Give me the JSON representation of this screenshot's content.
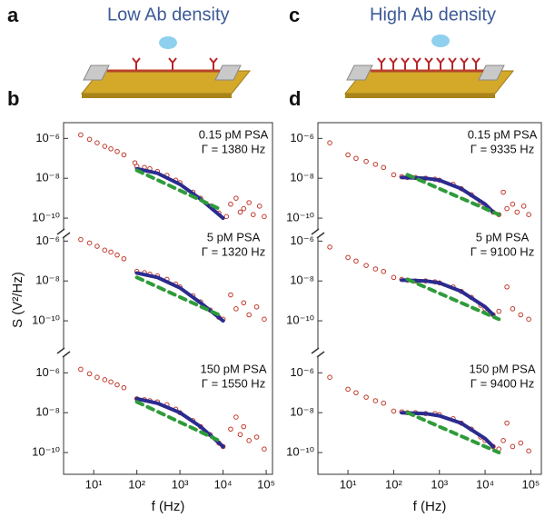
{
  "figure": {
    "panel_labels": [
      "a",
      "b",
      "c",
      "d"
    ],
    "titles": [
      "Low Ab density",
      "High Ab density"
    ],
    "y_label": "S (V²/Hz)",
    "x_labels": [
      "f (Hz)",
      "f (Hz)"
    ]
  },
  "chart_data": [
    {
      "type": "scatter",
      "log_x": true,
      "log_y": true,
      "xlim": [
        2,
        140000
      ],
      "ylim": [
        1e-11,
        5e-06
      ],
      "yticks": [
        {
          "value": 1e-06,
          "label": "10⁻⁶"
        },
        {
          "value": 1e-08,
          "label": "10⁻⁸"
        },
        {
          "value": 1e-10,
          "label": "10⁻¹⁰"
        }
      ],
      "annotations": [
        "0.15 pM PSA",
        "Γ = 1380 Hz"
      ],
      "series": [
        {
          "style": "markers",
          "color": "#c0392b",
          "x": [
            5,
            8,
            12,
            18,
            25,
            35,
            50,
            90,
            100,
            150,
            200,
            300,
            500,
            800,
            1000,
            2000,
            3000,
            5000,
            8000,
            12000,
            15000,
            20000,
            25000,
            30000,
            40000,
            50000,
            70000,
            90000
          ],
          "values": [
            1.5e-06,
            9e-07,
            6e-07,
            4e-07,
            3e-07,
            2.2e-07,
            1.5e-07,
            6e-08,
            4e-08,
            3.5e-08,
            3e-08,
            2.2e-08,
            1.4e-08,
            8e-09,
            6e-09,
            2e-09,
            1e-09,
            4e-10,
            1.8e-10,
            1.2e-10,
            5e-10,
            1e-09,
            2e-10,
            3e-10,
            6e-10,
            1.5e-10,
            4e-10,
            1.2e-10
          ]
        },
        {
          "style": "line",
          "color": "#2b2b8f",
          "x": [
            100,
            300,
            1000,
            3000,
            10000
          ],
          "values": [
            3e-08,
            1.8e-08,
            5e-09,
            9e-10,
            1e-10
          ]
        },
        {
          "style": "dashed",
          "color": "#2e9b3a",
          "x": [
            100,
            8000
          ],
          "values": [
            2.5e-08,
            3e-10
          ]
        }
      ]
    },
    {
      "type": "scatter",
      "log_x": true,
      "log_y": true,
      "xlim": [
        2,
        140000
      ],
      "ylim": [
        1e-11,
        5e-06
      ],
      "yticks": [
        {
          "value": 1e-06,
          "label": "10⁻⁶"
        },
        {
          "value": 1e-08,
          "label": "10⁻⁸"
        },
        {
          "value": 1e-10,
          "label": "10⁻¹⁰"
        }
      ],
      "annotations": [
        "5 pM PSA",
        "Γ = 1320 Hz"
      ],
      "series": [
        {
          "style": "markers",
          "color": "#c0392b",
          "x": [
            5,
            8,
            12,
            18,
            25,
            35,
            50,
            100,
            150,
            200,
            300,
            500,
            800,
            1000,
            2000,
            3000,
            5000,
            8000,
            10000,
            15000,
            20000,
            30000,
            40000,
            60000,
            90000
          ],
          "values": [
            1.2e-06,
            8e-07,
            5.5e-07,
            3.5e-07,
            2.8e-07,
            2e-07,
            1.3e-07,
            3e-08,
            2.6e-08,
            2.2e-08,
            1.8e-08,
            1.2e-08,
            7e-09,
            5e-09,
            1.8e-09,
            9e-10,
            3.5e-10,
            1.5e-10,
            1.2e-10,
            2e-09,
            4e-10,
            8e-10,
            2e-10,
            5e-10,
            1.2e-10
          ]
        },
        {
          "style": "line",
          "color": "#2b2b8f",
          "x": [
            100,
            300,
            1000,
            3000,
            10000
          ],
          "values": [
            2.5e-08,
            1.5e-08,
            4.5e-09,
            8e-10,
            1e-10
          ]
        },
        {
          "style": "dashed",
          "color": "#2e9b3a",
          "x": [
            100,
            8000
          ],
          "values": [
            1.5e-08,
            2e-10
          ]
        }
      ]
    },
    {
      "type": "scatter",
      "log_x": true,
      "log_y": true,
      "xlim": [
        2,
        140000
      ],
      "ylim": [
        1e-11,
        5e-06
      ],
      "xticks": [
        {
          "value": 10,
          "label": "10¹"
        },
        {
          "value": 100,
          "label": "10²"
        },
        {
          "value": 1000,
          "label": "10³"
        },
        {
          "value": 10000,
          "label": "10⁴"
        },
        {
          "value": 100000,
          "label": "10⁵"
        }
      ],
      "yticks": [
        {
          "value": 1e-06,
          "label": "10⁻⁶"
        },
        {
          "value": 1e-08,
          "label": "10⁻⁸"
        },
        {
          "value": 1e-10,
          "label": "10⁻¹⁰"
        }
      ],
      "annotations": [
        "150 pM PSA",
        "Γ = 1550 Hz"
      ],
      "series": [
        {
          "style": "markers",
          "color": "#c0392b",
          "x": [
            5,
            8,
            12,
            18,
            25,
            35,
            50,
            100,
            150,
            200,
            300,
            500,
            800,
            1000,
            2000,
            3000,
            5000,
            8000,
            10000,
            15000,
            20000,
            25000,
            30000,
            40000,
            60000,
            90000
          ],
          "values": [
            1.5e-06,
            9e-07,
            6e-07,
            4.5e-07,
            3.5e-07,
            2.5e-07,
            1.8e-07,
            5e-08,
            4.5e-08,
            4e-08,
            3.5e-08,
            2.5e-08,
            1.5e-08,
            1e-08,
            4e-09,
            2e-09,
            8e-10,
            3e-10,
            2e-10,
            1.5e-09,
            6e-09,
            8e-10,
            2e-09,
            4e-10,
            6e-10,
            1.5e-10
          ]
        },
        {
          "style": "line",
          "color": "#2b2b8f",
          "x": [
            100,
            300,
            1000,
            3000,
            10000
          ],
          "values": [
            5e-08,
            3e-08,
            1e-08,
            2e-09,
            2e-10
          ]
        },
        {
          "style": "dashed",
          "color": "#2e9b3a",
          "x": [
            100,
            8000
          ],
          "values": [
            3.5e-08,
            4e-10
          ]
        }
      ]
    },
    {
      "type": "scatter",
      "log_x": true,
      "log_y": true,
      "xlim": [
        2.2,
        170000
      ],
      "ylim": [
        1e-11,
        5e-06
      ],
      "yticks": [
        {
          "value": 1e-06,
          "label": "10⁻⁶"
        },
        {
          "value": 1e-08,
          "label": "10⁻⁸"
        },
        {
          "value": 1e-10,
          "label": "10⁻¹⁰"
        }
      ],
      "annotations": [
        "0.15 pM PSA",
        "Γ = 9335 Hz"
      ],
      "series": [
        {
          "style": "markers",
          "color": "#c0392b",
          "x": [
            4,
            10,
            15,
            25,
            40,
            60,
            100,
            150,
            200,
            300,
            500,
            800,
            1000,
            2000,
            3000,
            5000,
            8000,
            10000,
            15000,
            20000,
            25000,
            30000,
            40000,
            50000,
            70000,
            90000
          ],
          "values": [
            6e-07,
            1.5e-07,
            1e-07,
            7e-08,
            5e-08,
            3.5e-08,
            1.5e-08,
            1.2e-08,
            1.1e-08,
            1.1e-08,
            1e-08,
            9e-09,
            8e-09,
            5e-09,
            3e-09,
            1.5e-09,
            6e-10,
            4e-10,
            2e-10,
            1.5e-10,
            2e-09,
            3e-10,
            5e-10,
            2e-10,
            4e-10,
            1.5e-10
          ]
        },
        {
          "style": "line",
          "color": "#2b2b8f",
          "x": [
            150,
            500,
            1000,
            3000,
            10000,
            15000
          ],
          "values": [
            1.1e-08,
            1e-08,
            8e-09,
            3e-09,
            5e-10,
            2e-10
          ]
        },
        {
          "style": "dashed",
          "color": "#2e9b3a",
          "x": [
            200,
            20000
          ],
          "values": [
            1.5e-08,
            1.5e-10
          ]
        }
      ]
    },
    {
      "type": "scatter",
      "log_x": true,
      "log_y": true,
      "xlim": [
        2.2,
        170000
      ],
      "ylim": [
        1e-11,
        5e-06
      ],
      "yticks": [
        {
          "value": 1e-06,
          "label": "10⁻⁶"
        },
        {
          "value": 1e-08,
          "label": "10⁻⁸"
        },
        {
          "value": 1e-10,
          "label": "10⁻¹⁰"
        }
      ],
      "annotations": [
        "5 pM PSA",
        "Γ = 9100 Hz"
      ],
      "series": [
        {
          "style": "markers",
          "color": "#c0392b",
          "x": [
            4,
            10,
            15,
            25,
            40,
            60,
            100,
            150,
            200,
            300,
            500,
            800,
            1000,
            2000,
            3000,
            5000,
            8000,
            10000,
            15000,
            20000,
            30000,
            40000,
            60000,
            90000
          ],
          "values": [
            5e-07,
            1.5e-07,
            1e-07,
            6e-08,
            4e-08,
            3e-08,
            1.5e-08,
            1.2e-08,
            1.1e-08,
            1e-08,
            1e-08,
            9e-09,
            8e-09,
            5e-09,
            3e-09,
            1.5e-09,
            6e-10,
            4e-10,
            2e-10,
            3e-10,
            5e-09,
            4e-10,
            2e-10,
            1.2e-10
          ]
        },
        {
          "style": "line",
          "color": "#2b2b8f",
          "x": [
            150,
            500,
            1000,
            3000,
            10000,
            15000
          ],
          "values": [
            1.1e-08,
            1e-08,
            8e-09,
            3e-09,
            5e-10,
            2e-10
          ]
        },
        {
          "style": "dashed",
          "color": "#2e9b3a",
          "x": [
            200,
            20000
          ],
          "values": [
            1.2e-08,
            1.2e-10
          ]
        }
      ]
    },
    {
      "type": "scatter",
      "log_x": true,
      "log_y": true,
      "xlim": [
        2.2,
        170000
      ],
      "ylim": [
        1e-11,
        5e-06
      ],
      "xticks": [
        {
          "value": 10,
          "label": "10¹"
        },
        {
          "value": 100,
          "label": "10²"
        },
        {
          "value": 1000,
          "label": "10³"
        },
        {
          "value": 10000,
          "label": "10⁴"
        },
        {
          "value": 100000,
          "label": "10⁵"
        }
      ],
      "yticks": [
        {
          "value": 1e-06,
          "label": "10⁻⁶"
        },
        {
          "value": 1e-08,
          "label": "10⁻⁸"
        },
        {
          "value": 1e-10,
          "label": "10⁻¹⁰"
        }
      ],
      "annotations": [
        "150 pM PSA",
        "Γ = 9400 Hz"
      ],
      "series": [
        {
          "style": "markers",
          "color": "#c0392b",
          "x": [
            4,
            10,
            15,
            25,
            40,
            60,
            100,
            150,
            200,
            300,
            500,
            800,
            1000,
            2000,
            3000,
            5000,
            8000,
            10000,
            15000,
            20000,
            25000,
            30000,
            40000,
            60000,
            90000
          ],
          "values": [
            6e-07,
            1.5e-07,
            1e-07,
            6e-08,
            4e-08,
            3e-08,
            1.2e-08,
            1.1e-08,
            1e-08,
            1e-08,
            9e-09,
            9e-09,
            8e-09,
            5e-09,
            3e-09,
            1.5e-09,
            6e-10,
            4e-10,
            2e-10,
            1.5e-10,
            4e-10,
            3e-09,
            2e-10,
            3e-10,
            1.2e-10
          ]
        },
        {
          "style": "line",
          "color": "#2b2b8f",
          "x": [
            150,
            500,
            1000,
            3000,
            10000,
            15000
          ],
          "values": [
            1e-08,
            9e-09,
            7e-09,
            3e-09,
            5e-10,
            2e-10
          ]
        },
        {
          "style": "dashed",
          "color": "#2e9b3a",
          "x": [
            200,
            20000
          ],
          "values": [
            1e-08,
            1e-10
          ]
        }
      ]
    }
  ]
}
